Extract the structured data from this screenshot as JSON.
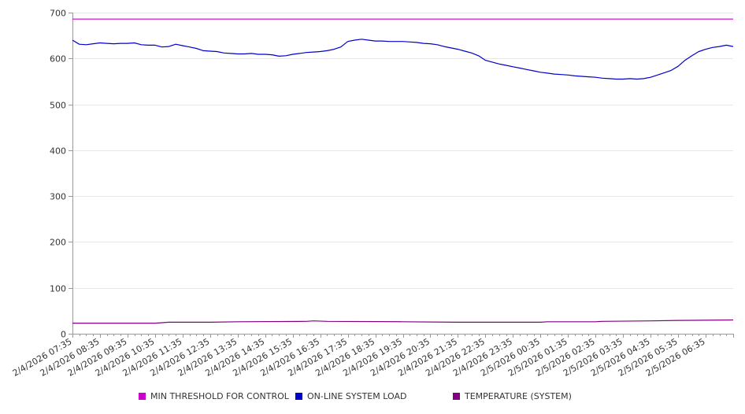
{
  "chart_data": {
    "type": "line",
    "title": "",
    "xlabel": "",
    "ylabel": "",
    "ylim": [
      0,
      700
    ],
    "yticks": [
      0,
      100,
      200,
      300,
      400,
      500,
      600,
      700
    ],
    "grid": true,
    "legend_position": "bottom",
    "x_tick_labels": [
      "2/4/2026 07:35",
      "2/4/2026 08:35",
      "2/4/2026 09:35",
      "2/4/2026 10:35",
      "2/4/2026 11:35",
      "2/4/2026 12:35",
      "2/4/2026 13:35",
      "2/4/2026 14:35",
      "2/4/2026 15:35",
      "2/4/2026 16:35",
      "2/4/2026 17:35",
      "2/4/2026 18:35",
      "2/4/2026 19:35",
      "2/4/2026 20:35",
      "2/4/2026 21:35",
      "2/4/2026 22:35",
      "2/4/2026 23:35",
      "2/5/2026 00:35",
      "2/5/2026 01:35",
      "2/5/2026 02:35",
      "2/5/2026 03:35",
      "2/5/2026 04:35",
      "2/5/2026 05:35",
      "2/5/2026 06:35"
    ],
    "x_end": "2/5/2026 07:35",
    "series": [
      {
        "name": "MIN THRESHOLD FOR CONTROL",
        "color": "#cc00cc",
        "points": [
          [
            "2/4/2026 07:35",
            686
          ],
          [
            "2/5/2026 07:35",
            686
          ]
        ]
      },
      {
        "name": "ON-LINE SYSTEM LOAD",
        "color": "#0000cc",
        "points": [
          [
            "2/4/2026 07:35",
            640
          ],
          [
            "2/4/2026 07:50",
            631
          ],
          [
            "2/4/2026 08:05",
            630
          ],
          [
            "2/4/2026 08:20",
            632
          ],
          [
            "2/4/2026 08:35",
            634
          ],
          [
            "2/4/2026 08:50",
            633
          ],
          [
            "2/4/2026 09:05",
            632
          ],
          [
            "2/4/2026 09:20",
            633
          ],
          [
            "2/4/2026 09:35",
            633
          ],
          [
            "2/4/2026 09:50",
            634
          ],
          [
            "2/4/2026 10:05",
            630
          ],
          [
            "2/4/2026 10:20",
            629
          ],
          [
            "2/4/2026 10:35",
            629
          ],
          [
            "2/4/2026 10:50",
            625
          ],
          [
            "2/4/2026 11:05",
            626
          ],
          [
            "2/4/2026 11:20",
            631
          ],
          [
            "2/4/2026 11:35",
            628
          ],
          [
            "2/4/2026 11:50",
            625
          ],
          [
            "2/4/2026 12:05",
            622
          ],
          [
            "2/4/2026 12:20",
            617
          ],
          [
            "2/4/2026 12:35",
            616
          ],
          [
            "2/4/2026 12:50",
            615
          ],
          [
            "2/4/2026 13:05",
            612
          ],
          [
            "2/4/2026 13:20",
            611
          ],
          [
            "2/4/2026 13:35",
            610
          ],
          [
            "2/4/2026 13:50",
            610
          ],
          [
            "2/4/2026 14:05",
            611
          ],
          [
            "2/4/2026 14:20",
            609
          ],
          [
            "2/4/2026 14:35",
            609
          ],
          [
            "2/4/2026 14:50",
            608
          ],
          [
            "2/4/2026 15:05",
            605
          ],
          [
            "2/4/2026 15:20",
            606
          ],
          [
            "2/4/2026 15:35",
            609
          ],
          [
            "2/4/2026 15:50",
            611
          ],
          [
            "2/4/2026 16:05",
            613
          ],
          [
            "2/4/2026 16:20",
            614
          ],
          [
            "2/4/2026 16:35",
            615
          ],
          [
            "2/4/2026 16:50",
            617
          ],
          [
            "2/4/2026 17:05",
            620
          ],
          [
            "2/4/2026 17:20",
            625
          ],
          [
            "2/4/2026 17:35",
            637
          ],
          [
            "2/4/2026 17:50",
            640
          ],
          [
            "2/4/2026 18:05",
            642
          ],
          [
            "2/4/2026 18:20",
            640
          ],
          [
            "2/4/2026 18:35",
            638
          ],
          [
            "2/4/2026 18:50",
            638
          ],
          [
            "2/4/2026 19:05",
            637
          ],
          [
            "2/4/2026 19:20",
            637
          ],
          [
            "2/4/2026 19:35",
            637
          ],
          [
            "2/4/2026 19:50",
            636
          ],
          [
            "2/4/2026 20:05",
            635
          ],
          [
            "2/4/2026 20:20",
            633
          ],
          [
            "2/4/2026 20:35",
            632
          ],
          [
            "2/4/2026 20:50",
            630
          ],
          [
            "2/4/2026 21:05",
            626
          ],
          [
            "2/4/2026 21:20",
            623
          ],
          [
            "2/4/2026 21:35",
            620
          ],
          [
            "2/4/2026 21:50",
            616
          ],
          [
            "2/4/2026 22:05",
            612
          ],
          [
            "2/4/2026 22:20",
            606
          ],
          [
            "2/4/2026 22:35",
            596
          ],
          [
            "2/4/2026 22:50",
            592
          ],
          [
            "2/4/2026 23:05",
            588
          ],
          [
            "2/4/2026 23:20",
            585
          ],
          [
            "2/4/2026 23:35",
            582
          ],
          [
            "2/4/2026 23:50",
            579
          ],
          [
            "2/5/2026 00:05",
            576
          ],
          [
            "2/5/2026 00:20",
            573
          ],
          [
            "2/5/2026 00:35",
            570
          ],
          [
            "2/5/2026 00:50",
            568
          ],
          [
            "2/5/2026 01:05",
            566
          ],
          [
            "2/5/2026 01:20",
            565
          ],
          [
            "2/5/2026 01:35",
            564
          ],
          [
            "2/5/2026 01:50",
            562
          ],
          [
            "2/5/2026 02:05",
            561
          ],
          [
            "2/5/2026 02:20",
            560
          ],
          [
            "2/5/2026 02:35",
            559
          ],
          [
            "2/5/2026 02:50",
            557
          ],
          [
            "2/5/2026 03:05",
            556
          ],
          [
            "2/5/2026 03:20",
            555
          ],
          [
            "2/5/2026 03:35",
            555
          ],
          [
            "2/5/2026 03:50",
            556
          ],
          [
            "2/5/2026 04:05",
            555
          ],
          [
            "2/5/2026 04:20",
            556
          ],
          [
            "2/5/2026 04:35",
            559
          ],
          [
            "2/5/2026 04:50",
            564
          ],
          [
            "2/5/2026 05:05",
            569
          ],
          [
            "2/5/2026 05:20",
            574
          ],
          [
            "2/5/2026 05:35",
            583
          ],
          [
            "2/5/2026 05:50",
            596
          ],
          [
            "2/5/2026 06:05",
            606
          ],
          [
            "2/5/2026 06:20",
            615
          ],
          [
            "2/5/2026 06:35",
            620
          ],
          [
            "2/5/2026 06:50",
            624
          ],
          [
            "2/5/2026 07:05",
            626
          ],
          [
            "2/5/2026 07:20",
            629
          ],
          [
            "2/5/2026 07:35",
            626
          ]
        ]
      },
      {
        "name": "TEMPERATURE (SYSTEM)",
        "color": "#800080",
        "points": [
          [
            "2/4/2026 07:35",
            23
          ],
          [
            "2/4/2026 10:35",
            23
          ],
          [
            "2/4/2026 11:05",
            25
          ],
          [
            "2/4/2026 12:35",
            25
          ],
          [
            "2/4/2026 13:35",
            26
          ],
          [
            "2/4/2026 16:05",
            27
          ],
          [
            "2/4/2026 16:20",
            28
          ],
          [
            "2/4/2026 16:50",
            27
          ],
          [
            "2/4/2026 19:35",
            26
          ],
          [
            "2/4/2026 21:35",
            25
          ],
          [
            "2/5/2026 00:35",
            25
          ],
          [
            "2/5/2026 00:50",
            26
          ],
          [
            "2/5/2026 02:35",
            26
          ],
          [
            "2/5/2026 02:50",
            27
          ],
          [
            "2/5/2026 04:35",
            28
          ],
          [
            "2/5/2026 05:35",
            29
          ],
          [
            "2/5/2026 07:35",
            30
          ]
        ]
      }
    ]
  }
}
